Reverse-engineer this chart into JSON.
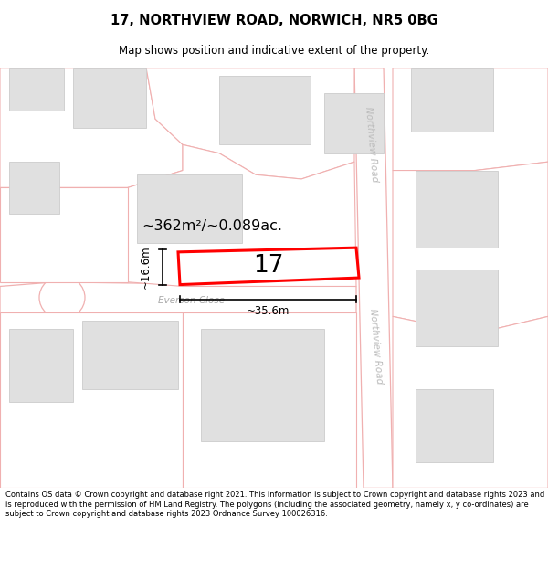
{
  "title": "17, NORTHVIEW ROAD, NORWICH, NR5 0BG",
  "subtitle": "Map shows position and indicative extent of the property.",
  "footer": "Contains OS data © Crown copyright and database right 2021. This information is subject to Crown copyright and database rights 2023 and is reproduced with the permission of HM Land Registry. The polygons (including the associated geometry, namely x, y co-ordinates) are subject to Crown copyright and database rights 2023 Ordnance Survey 100026316.",
  "map_bg": "#f8f8f8",
  "plot_outline_color": "#f0b0b0",
  "building_color": "#e0e0e0",
  "building_edge": "#cccccc",
  "highlight_color": "#ff0000",
  "road_label_color": "#bbbbbb",
  "street_label_color": "#aaaaaa",
  "area_text": "~362m²/~0.089ac.",
  "number_text": "17",
  "dim_width": "~35.6m",
  "dim_height": "~16.6m",
  "road_label": "Northview Road",
  "street_label": "Everson Close"
}
